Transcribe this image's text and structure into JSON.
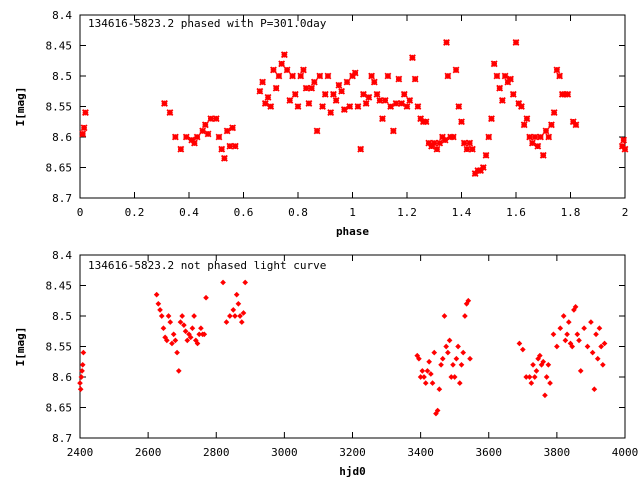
{
  "chart_data": [
    {
      "type": "scatter",
      "title": "134616-5823.2 phased with P=301.0day",
      "xlabel": "phase",
      "ylabel": "I[mag]",
      "xlim": [
        0,
        2
      ],
      "ylim": [
        8.4,
        8.7
      ],
      "y_inverted": true,
      "grid": false,
      "legend": "none",
      "marker": "plus-cross",
      "color": "#ff0000",
      "xticks": [
        "0",
        "0.2",
        "0.4",
        "0.6",
        "0.8",
        "1",
        "1.2",
        "1.4",
        "1.6",
        "1.8",
        "2"
      ],
      "yticks": [
        "8.4",
        "8.45",
        "8.5",
        "8.55",
        "8.6",
        "8.65",
        "8.7"
      ],
      "series": [
        {
          "points": [
            [
              0.01,
              8.595
            ],
            [
              0.015,
              8.585
            ],
            [
              0.02,
              8.56
            ],
            [
              0.31,
              8.545
            ],
            [
              0.33,
              8.56
            ],
            [
              0.35,
              8.6
            ],
            [
              0.37,
              8.62
            ],
            [
              0.39,
              8.6
            ],
            [
              0.41,
              8.605
            ],
            [
              0.42,
              8.61
            ],
            [
              0.43,
              8.6
            ],
            [
              0.45,
              8.59
            ],
            [
              0.46,
              8.58
            ],
            [
              0.47,
              8.595
            ],
            [
              0.48,
              8.57
            ],
            [
              0.5,
              8.57
            ],
            [
              0.51,
              8.6
            ],
            [
              0.52,
              8.62
            ],
            [
              0.53,
              8.635
            ],
            [
              0.54,
              8.59
            ],
            [
              0.55,
              8.615
            ],
            [
              0.56,
              8.585
            ],
            [
              0.57,
              8.615
            ],
            [
              0.66,
              8.525
            ],
            [
              0.67,
              8.51
            ],
            [
              0.68,
              8.545
            ],
            [
              0.69,
              8.535
            ],
            [
              0.7,
              8.55
            ],
            [
              0.71,
              8.49
            ],
            [
              0.72,
              8.52
            ],
            [
              0.73,
              8.5
            ],
            [
              0.74,
              8.48
            ],
            [
              0.75,
              8.465
            ],
            [
              0.76,
              8.49
            ],
            [
              0.77,
              8.54
            ],
            [
              0.78,
              8.5
            ],
            [
              0.79,
              8.53
            ],
            [
              0.8,
              8.55
            ],
            [
              0.81,
              8.5
            ],
            [
              0.82,
              8.49
            ],
            [
              0.83,
              8.52
            ],
            [
              0.84,
              8.545
            ],
            [
              0.85,
              8.52
            ],
            [
              0.86,
              8.51
            ],
            [
              0.87,
              8.59
            ],
            [
              0.88,
              8.5
            ],
            [
              0.89,
              8.55
            ],
            [
              0.9,
              8.53
            ],
            [
              0.91,
              8.5
            ],
            [
              0.92,
              8.56
            ],
            [
              0.93,
              8.53
            ],
            [
              0.94,
              8.54
            ],
            [
              0.95,
              8.515
            ],
            [
              0.96,
              8.525
            ],
            [
              0.97,
              8.555
            ],
            [
              0.98,
              8.51
            ],
            [
              0.99,
              8.55
            ],
            [
              1.0,
              8.5
            ],
            [
              1.01,
              8.495
            ],
            [
              1.02,
              8.55
            ],
            [
              1.03,
              8.62
            ],
            [
              1.04,
              8.53
            ],
            [
              1.05,
              8.545
            ],
            [
              1.06,
              8.535
            ],
            [
              1.07,
              8.5
            ],
            [
              1.08,
              8.51
            ],
            [
              1.09,
              8.53
            ],
            [
              1.1,
              8.54
            ],
            [
              1.11,
              8.57
            ],
            [
              1.12,
              8.54
            ],
            [
              1.13,
              8.5
            ],
            [
              1.14,
              8.55
            ],
            [
              1.15,
              8.59
            ],
            [
              1.16,
              8.545
            ],
            [
              1.17,
              8.505
            ],
            [
              1.18,
              8.545
            ],
            [
              1.19,
              8.53
            ],
            [
              1.2,
              8.55
            ],
            [
              1.21,
              8.54
            ],
            [
              1.22,
              8.47
            ],
            [
              1.23,
              8.505
            ],
            [
              1.24,
              8.55
            ],
            [
              1.25,
              8.57
            ],
            [
              1.26,
              8.575
            ],
            [
              1.27,
              8.575
            ],
            [
              1.28,
              8.61
            ],
            [
              1.29,
              8.615
            ],
            [
              1.3,
              8.61
            ],
            [
              1.31,
              8.62
            ],
            [
              1.32,
              8.61
            ],
            [
              1.33,
              8.6
            ],
            [
              1.34,
              8.605
            ],
            [
              1.345,
              8.445
            ],
            [
              1.35,
              8.5
            ],
            [
              1.36,
              8.6
            ],
            [
              1.37,
              8.6
            ],
            [
              1.38,
              8.49
            ],
            [
              1.39,
              8.55
            ],
            [
              1.4,
              8.575
            ],
            [
              1.41,
              8.61
            ],
            [
              1.42,
              8.62
            ],
            [
              1.43,
              8.61
            ],
            [
              1.44,
              8.62
            ],
            [
              1.45,
              8.66
            ],
            [
              1.46,
              8.655
            ],
            [
              1.47,
              8.655
            ],
            [
              1.48,
              8.65
            ],
            [
              1.49,
              8.63
            ],
            [
              1.5,
              8.6
            ],
            [
              1.51,
              8.57
            ],
            [
              1.52,
              8.48
            ],
            [
              1.53,
              8.5
            ],
            [
              1.54,
              8.52
            ],
            [
              1.55,
              8.54
            ],
            [
              1.56,
              8.5
            ],
            [
              1.57,
              8.51
            ],
            [
              1.58,
              8.505
            ],
            [
              1.59,
              8.53
            ],
            [
              1.6,
              8.445
            ],
            [
              1.61,
              8.545
            ],
            [
              1.62,
              8.55
            ],
            [
              1.63,
              8.58
            ],
            [
              1.64,
              8.57
            ],
            [
              1.65,
              8.6
            ],
            [
              1.66,
              8.61
            ],
            [
              1.67,
              8.6
            ],
            [
              1.68,
              8.615
            ],
            [
              1.69,
              8.6
            ],
            [
              1.7,
              8.63
            ],
            [
              1.71,
              8.59
            ],
            [
              1.72,
              8.6
            ],
            [
              1.73,
              8.58
            ],
            [
              1.74,
              8.56
            ],
            [
              1.75,
              8.49
            ],
            [
              1.76,
              8.5
            ],
            [
              1.77,
              8.53
            ],
            [
              1.78,
              8.53
            ],
            [
              1.79,
              8.53
            ],
            [
              1.81,
              8.575
            ],
            [
              1.82,
              8.58
            ],
            [
              1.99,
              8.615
            ],
            [
              1.995,
              8.605
            ],
            [
              2.0,
              8.62
            ]
          ]
        }
      ]
    },
    {
      "type": "scatter",
      "title": "134616-5823.2 not phased light curve",
      "xlabel": "hjd0",
      "ylabel": "I[mag]",
      "xlim": [
        2400,
        4000
      ],
      "ylim": [
        8.4,
        8.7
      ],
      "y_inverted": true,
      "grid": false,
      "legend": "none",
      "marker": "diamond",
      "color": "#ff0000",
      "xticks": [
        "2400",
        "2600",
        "2800",
        "3000",
        "3200",
        "3400",
        "3600",
        "3800",
        "4000"
      ],
      "yticks": [
        "8.4",
        "8.45",
        "8.5",
        "8.55",
        "8.6",
        "8.65",
        "8.7"
      ],
      "series": [
        {
          "points": [
            [
              2400,
              8.61
            ],
            [
              2402,
              8.62
            ],
            [
              2404,
              8.6
            ],
            [
              2406,
              8.59
            ],
            [
              2408,
              8.58
            ],
            [
              2410,
              8.56
            ],
            [
              2625,
              8.465
            ],
            [
              2630,
              8.48
            ],
            [
              2635,
              8.49
            ],
            [
              2640,
              8.5
            ],
            [
              2645,
              8.52
            ],
            [
              2650,
              8.535
            ],
            [
              2655,
              8.54
            ],
            [
              2660,
              8.5
            ],
            [
              2665,
              8.51
            ],
            [
              2670,
              8.545
            ],
            [
              2675,
              8.53
            ],
            [
              2680,
              8.54
            ],
            [
              2685,
              8.56
            ],
            [
              2690,
              8.59
            ],
            [
              2695,
              8.51
            ],
            [
              2700,
              8.5
            ],
            [
              2705,
              8.515
            ],
            [
              2710,
              8.525
            ],
            [
              2715,
              8.54
            ],
            [
              2720,
              8.53
            ],
            [
              2725,
              8.535
            ],
            [
              2730,
              8.52
            ],
            [
              2735,
              8.5
            ],
            [
              2740,
              8.54
            ],
            [
              2745,
              8.545
            ],
            [
              2750,
              8.53
            ],
            [
              2755,
              8.52
            ],
            [
              2760,
              8.53
            ],
            [
              2765,
              8.53
            ],
            [
              2770,
              8.47
            ],
            [
              2820,
              8.445
            ],
            [
              2830,
              8.51
            ],
            [
              2840,
              8.5
            ],
            [
              2850,
              8.49
            ],
            [
              2855,
              8.5
            ],
            [
              2860,
              8.465
            ],
            [
              2865,
              8.48
            ],
            [
              2870,
              8.5
            ],
            [
              2875,
              8.51
            ],
            [
              2880,
              8.495
            ],
            [
              2885,
              8.445
            ],
            [
              3390,
              8.565
            ],
            [
              3395,
              8.57
            ],
            [
              3400,
              8.6
            ],
            [
              3405,
              8.59
            ],
            [
              3410,
              8.6
            ],
            [
              3415,
              8.61
            ],
            [
              3420,
              8.59
            ],
            [
              3425,
              8.575
            ],
            [
              3430,
              8.595
            ],
            [
              3435,
              8.61
            ],
            [
              3440,
              8.56
            ],
            [
              3445,
              8.66
            ],
            [
              3450,
              8.655
            ],
            [
              3455,
              8.62
            ],
            [
              3460,
              8.58
            ],
            [
              3465,
              8.57
            ],
            [
              3470,
              8.5
            ],
            [
              3475,
              8.55
            ],
            [
              3480,
              8.56
            ],
            [
              3485,
              8.54
            ],
            [
              3490,
              8.6
            ],
            [
              3495,
              8.58
            ],
            [
              3500,
              8.6
            ],
            [
              3505,
              8.57
            ],
            [
              3510,
              8.55
            ],
            [
              3515,
              8.61
            ],
            [
              3520,
              8.58
            ],
            [
              3525,
              8.56
            ],
            [
              3530,
              8.5
            ],
            [
              3535,
              8.48
            ],
            [
              3540,
              8.475
            ],
            [
              3545,
              8.57
            ],
            [
              3690,
              8.545
            ],
            [
              3700,
              8.555
            ],
            [
              3710,
              8.6
            ],
            [
              3720,
              8.6
            ],
            [
              3725,
              8.61
            ],
            [
              3730,
              8.58
            ],
            [
              3735,
              8.6
            ],
            [
              3740,
              8.59
            ],
            [
              3745,
              8.57
            ],
            [
              3750,
              8.565
            ],
            [
              3755,
              8.58
            ],
            [
              3760,
              8.575
            ],
            [
              3765,
              8.63
            ],
            [
              3770,
              8.6
            ],
            [
              3775,
              8.58
            ],
            [
              3780,
              8.61
            ],
            [
              3790,
              8.53
            ],
            [
              3800,
              8.55
            ],
            [
              3810,
              8.52
            ],
            [
              3820,
              8.5
            ],
            [
              3825,
              8.54
            ],
            [
              3830,
              8.53
            ],
            [
              3835,
              8.51
            ],
            [
              3840,
              8.545
            ],
            [
              3845,
              8.55
            ],
            [
              3850,
              8.49
            ],
            [
              3855,
              8.485
            ],
            [
              3860,
              8.53
            ],
            [
              3865,
              8.54
            ],
            [
              3870,
              8.59
            ],
            [
              3880,
              8.52
            ],
            [
              3890,
              8.55
            ],
            [
              3900,
              8.51
            ],
            [
              3905,
              8.56
            ],
            [
              3910,
              8.62
            ],
            [
              3915,
              8.53
            ],
            [
              3920,
              8.57
            ],
            [
              3925,
              8.52
            ],
            [
              3930,
              8.55
            ],
            [
              3935,
              8.58
            ],
            [
              3940,
              8.545
            ]
          ]
        }
      ]
    }
  ]
}
